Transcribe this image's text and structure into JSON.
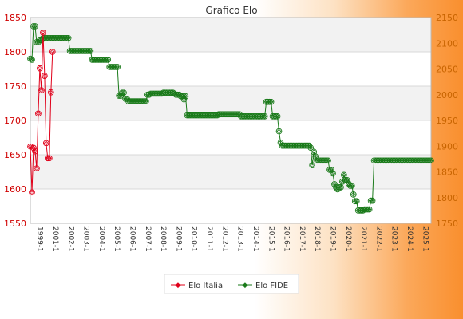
{
  "colors": {
    "italia": "#e0001a",
    "fide": "#1a7a1a",
    "axis_left": "#d00000",
    "axis_right": "#c86400"
  },
  "chart_data": {
    "type": "line",
    "title": "Grafico Elo",
    "xlabel": "",
    "ylim_left": [
      1550,
      1850
    ],
    "ylim_right": [
      1750,
      2150
    ],
    "left_ticks": [
      1550,
      1600,
      1650,
      1700,
      1750,
      1800,
      1850
    ],
    "right_ticks": [
      1750,
      1800,
      1850,
      1900,
      1950,
      2000,
      2050,
      2100,
      2150
    ],
    "grid": true,
    "legend_position": "bottom-center",
    "series": [
      {
        "name": "Elo Italia",
        "axis": "left",
        "values": [
          1662,
          1595,
          1660,
          1655,
          1630,
          1710,
          1776,
          1744,
          1828,
          1765,
          1667,
          1645,
          1645,
          1741,
          1800
        ]
      },
      {
        "name": "Elo FIDE",
        "axis": "right",
        "values": [
          2070,
          2068,
          2133,
          2133,
          2102,
          2102,
          2106,
          2106,
          2110,
          2110,
          2110,
          2110,
          2110,
          2110,
          2110,
          2110,
          2110,
          2110,
          2110,
          2110,
          2110,
          2110,
          2110,
          2110,
          2110,
          2085,
          2085,
          2085,
          2085,
          2085,
          2085,
          2085,
          2085,
          2085,
          2085,
          2085,
          2085,
          2085,
          2085,
          2068,
          2068,
          2068,
          2068,
          2068,
          2068,
          2068,
          2068,
          2068,
          2068,
          2068,
          2054,
          2054,
          2054,
          2054,
          2054,
          2054,
          1998,
          1998,
          2004,
          2004,
          1992,
          1992,
          1987,
          1987,
          1987,
          1987,
          1987,
          1987,
          1987,
          1987,
          1987,
          1987,
          1987,
          1987,
          2000,
          2000,
          2002,
          2002,
          2002,
          2002,
          2002,
          2002,
          2002,
          2002,
          2004,
          2004,
          2004,
          2004,
          2004,
          2004,
          2004,
          2002,
          2000,
          2000,
          2000,
          1997,
          1997,
          1991,
          1997,
          1960,
          1960,
          1960,
          1960,
          1960,
          1960,
          1960,
          1960,
          1960,
          1960,
          1960,
          1960,
          1960,
          1960,
          1960,
          1960,
          1960,
          1960,
          1960,
          1960,
          1962,
          1962,
          1962,
          1962,
          1962,
          1962,
          1962,
          1962,
          1962,
          1962,
          1962,
          1962,
          1962,
          1962,
          1958,
          1958,
          1958,
          1958,
          1958,
          1958,
          1958,
          1958,
          1958,
          1958,
          1958,
          1958,
          1958,
          1958,
          1958,
          1958,
          1986,
          1986,
          1986,
          1986,
          1958,
          1958,
          1958,
          1958,
          1929,
          1907,
          1901,
          1901,
          1901,
          1901,
          1901,
          1901,
          1901,
          1901,
          1901,
          1901,
          1901,
          1901,
          1901,
          1901,
          1901,
          1901,
          1901,
          1901,
          1897,
          1863,
          1889,
          1880,
          1872,
          1872,
          1872,
          1872,
          1872,
          1872,
          1872,
          1872,
          1854,
          1854,
          1847,
          1826,
          1820,
          1816,
          1820,
          1820,
          1831,
          1844,
          1834,
          1834,
          1827,
          1823,
          1823,
          1806,
          1793,
          1793,
          1775,
          1775,
          1775,
          1775,
          1777,
          1777,
          1777,
          1777,
          1794,
          1794,
          1872,
          1872,
          1872,
          1872,
          1872,
          1872,
          1872,
          1872,
          1872,
          1872,
          1872,
          1872,
          1872,
          1872,
          1872,
          1872,
          1872,
          1872,
          1872,
          1872,
          1872,
          1872,
          1872,
          1872,
          1872,
          1872,
          1872,
          1872,
          1872,
          1872,
          1872,
          1872,
          1872,
          1872,
          1872,
          1872,
          1872
        ]
      }
    ],
    "x_tick_labels": [
      "1999-1",
      "2001-1",
      "2002-1",
      "2003-1",
      "2004-1",
      "2005-1",
      "2006-1",
      "2007-1",
      "2008-1",
      "2009-1",
      "2010-1",
      "2011-1",
      "2012-1",
      "2013-1",
      "2014-1",
      "2015-1",
      "2016-1",
      "2017-1",
      "2018-1",
      "2019-1",
      "2020-1",
      "2021-1",
      "2022-1",
      "2023-1",
      "2024-1",
      "2025-1"
    ]
  }
}
